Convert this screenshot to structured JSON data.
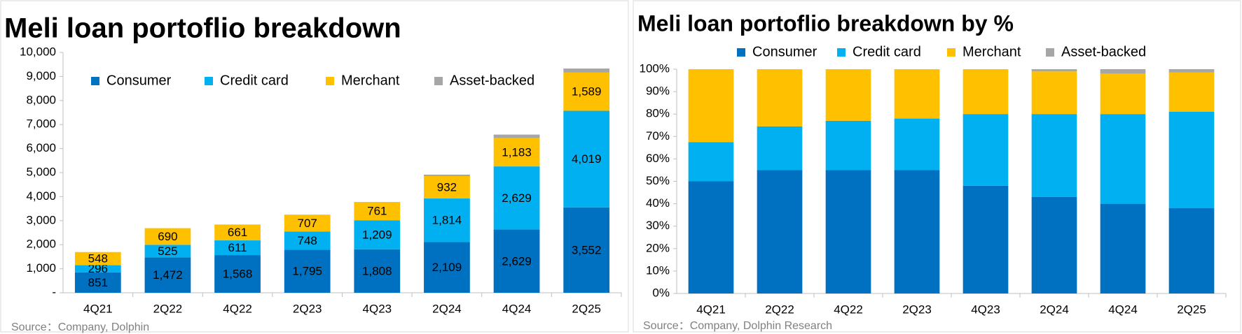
{
  "chart_data": [
    {
      "type": "bar",
      "stacked": true,
      "title": "Meli loan portoflio breakdown",
      "source": "Source：Company, Dolphin",
      "categories": [
        "4Q21",
        "2Q22",
        "4Q22",
        "2Q23",
        "4Q23",
        "2Q24",
        "4Q24",
        "2Q25"
      ],
      "series": [
        {
          "name": "Consumer",
          "color": "#0070c0",
          "values": [
            851,
            1472,
            1568,
            1795,
            1808,
            2109,
            2629,
            3552
          ],
          "value_labels": [
            "851",
            "1,472",
            "1,568",
            "1,795",
            "1,808",
            "2,109",
            "2,629",
            "3,552"
          ]
        },
        {
          "name": "Credit card",
          "color": "#00b0f0",
          "values": [
            296,
            525,
            611,
            748,
            1209,
            1814,
            2629,
            4019
          ],
          "value_labels": [
            "296",
            "525",
            "611",
            "748",
            "1,209",
            "1,814",
            "2,629",
            "4,019"
          ]
        },
        {
          "name": "Merchant",
          "color": "#ffc000",
          "values": [
            548,
            690,
            661,
            707,
            761,
            932,
            1183,
            1589
          ],
          "value_labels": [
            "548",
            "690",
            "661",
            "707",
            "761",
            "932",
            "1,183",
            "1,589"
          ]
        },
        {
          "name": "Asset-backed",
          "color": "#a6a6a6",
          "values": [
            0,
            0,
            0,
            0,
            0,
            60,
            140,
            170
          ]
        }
      ],
      "ylim": [
        0,
        10000
      ],
      "yticks": [
        {
          "value": 0,
          "label": "-"
        },
        {
          "value": 1000,
          "label": "1,000"
        },
        {
          "value": 2000,
          "label": "2,000"
        },
        {
          "value": 3000,
          "label": "3,000"
        },
        {
          "value": 4000,
          "label": "4,000"
        },
        {
          "value": 5000,
          "label": "5,000"
        },
        {
          "value": 6000,
          "label": "6,000"
        },
        {
          "value": 7000,
          "label": "7,000"
        },
        {
          "value": 8000,
          "label": "8,000"
        },
        {
          "value": 9000,
          "label": "9,000"
        },
        {
          "value": 10000,
          "label": "10,000"
        }
      ],
      "grid": false,
      "legend": "top-inside"
    },
    {
      "type": "bar",
      "stacked": true,
      "title": "Meli loan portoflio breakdown by %",
      "source": "Source：Company, Dolphin Research",
      "categories": [
        "4Q21",
        "2Q22",
        "4Q22",
        "2Q23",
        "4Q23",
        "2Q24",
        "4Q24",
        "2Q25"
      ],
      "series": [
        {
          "name": "Consumer",
          "color": "#0070c0",
          "values": [
            50,
            55,
            55,
            55,
            48,
            43,
            40,
            38
          ]
        },
        {
          "name": "Credit card",
          "color": "#00b0f0",
          "values": [
            17.5,
            19.5,
            22,
            23,
            32,
            37,
            40,
            43
          ]
        },
        {
          "name": "Merchant",
          "color": "#ffc000",
          "values": [
            32.5,
            25.5,
            23,
            22,
            20,
            19,
            18,
            17.5
          ]
        },
        {
          "name": "Asset-backed",
          "color": "#a6a6a6",
          "values": [
            0,
            0,
            0,
            0,
            0,
            1,
            2,
            1.5
          ]
        }
      ],
      "ylim": [
        0,
        100
      ],
      "yticks": [
        {
          "value": 0,
          "label": "0%"
        },
        {
          "value": 10,
          "label": "10%"
        },
        {
          "value": 20,
          "label": "20%"
        },
        {
          "value": 30,
          "label": "30%"
        },
        {
          "value": 40,
          "label": "40%"
        },
        {
          "value": 50,
          "label": "50%"
        },
        {
          "value": 60,
          "label": "60%"
        },
        {
          "value": 70,
          "label": "70%"
        },
        {
          "value": 80,
          "label": "80%"
        },
        {
          "value": 90,
          "label": "90%"
        },
        {
          "value": 100,
          "label": "100%"
        }
      ],
      "grid": false,
      "legend": "top"
    }
  ]
}
